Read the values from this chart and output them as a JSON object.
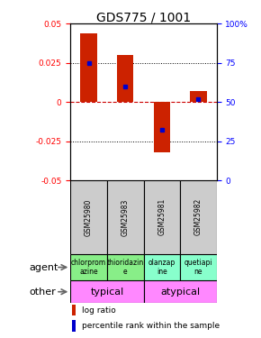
{
  "title": "GDS775 / 1001",
  "samples": [
    "GSM25980",
    "GSM25983",
    "GSM25981",
    "GSM25982"
  ],
  "log_ratios": [
    0.044,
    0.03,
    -0.032,
    0.007
  ],
  "percentile_ranks": [
    0.75,
    0.6,
    0.32,
    0.52
  ],
  "ylim": [
    -0.05,
    0.05
  ],
  "yticks_left": [
    -0.05,
    -0.025,
    0.0,
    0.025,
    0.05
  ],
  "yticks_left_labels": [
    "-0.05",
    "-0.025",
    "0",
    "0.025",
    "0.05"
  ],
  "yticks_right": [
    0,
    25,
    50,
    75,
    100
  ],
  "yticks_right_labels": [
    "0",
    "25",
    "50",
    "75",
    "100%"
  ],
  "agent_labels": [
    "chlorprom\nazine",
    "thioridazin\ne",
    "olanzap\nine",
    "quetiapi\nne"
  ],
  "agent_colors": [
    "#88ee88",
    "#88ee88",
    "#88ffcc",
    "#88ffcc"
  ],
  "other_color": "#ff88ff",
  "bar_color": "#cc2200",
  "dot_color": "#0000cc",
  "zero_line_color": "#cc0000",
  "grid_color": "#000000",
  "sample_box_color": "#cccccc",
  "title_fontsize": 10,
  "tick_fontsize": 6.5,
  "label_fontsize": 8,
  "annotation_fontsize": 6.5,
  "sample_fontsize": 5.5,
  "agent_fontsize": 5.5
}
